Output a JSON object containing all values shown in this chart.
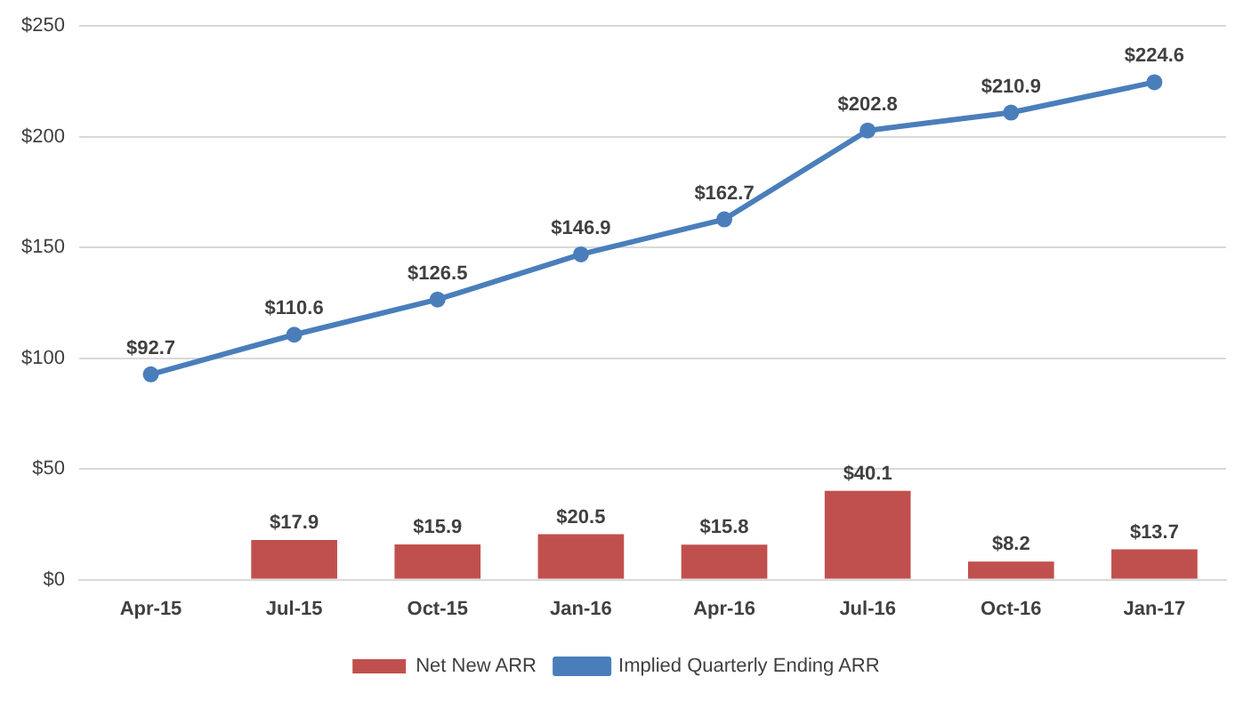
{
  "chart_data": {
    "type": "bar",
    "categories": [
      "Apr-15",
      "Jul-15",
      "Oct-15",
      "Jan-16",
      "Apr-16",
      "Jul-16",
      "Oct-16",
      "Jan-17"
    ],
    "series": [
      {
        "name": "Net New ARR",
        "color": "#c0504d",
        "values": [
          null,
          17.9,
          15.9,
          20.5,
          15.8,
          40.1,
          8.2,
          13.7
        ],
        "value_labels": [
          null,
          "$17.9",
          "$15.9",
          "$20.5",
          "$15.8",
          "$40.1",
          "$8.2",
          "$13.7"
        ]
      },
      {
        "name": "Implied Quarterly Ending ARR",
        "type": "line",
        "color": "#4a7ebb",
        "values": [
          92.7,
          110.6,
          126.5,
          146.9,
          162.7,
          202.8,
          210.9,
          224.6
        ],
        "value_labels": [
          "$92.7",
          "$110.6",
          "$126.5",
          "$146.9",
          "$162.7",
          "$202.8",
          "$210.9",
          "$224.6"
        ]
      }
    ],
    "ylim": [
      0,
      250
    ],
    "yticks": [
      {
        "value": 0,
        "label": "$0"
      },
      {
        "value": 50,
        "label": "$50"
      },
      {
        "value": 100,
        "label": "$100"
      },
      {
        "value": 150,
        "label": "$150"
      },
      {
        "value": 200,
        "label": "$200"
      },
      {
        "value": 250,
        "label": "$250"
      }
    ],
    "grid": "y",
    "legend": "bottom",
    "marker": "circle",
    "line_style": "solid"
  }
}
